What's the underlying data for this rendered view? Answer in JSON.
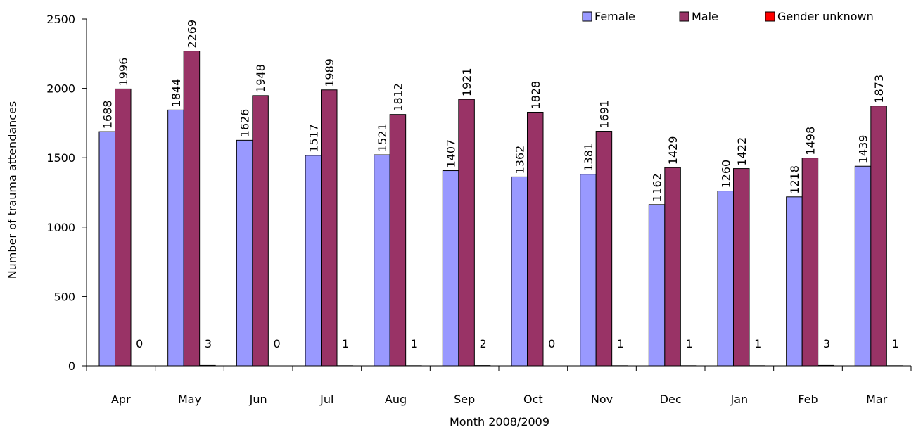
{
  "chart_data": {
    "type": "bar",
    "categories": [
      "Apr",
      "May",
      "Jun",
      "Jul",
      "Aug",
      "Sep",
      "Oct",
      "Nov",
      "Dec",
      "Jan",
      "Feb",
      "Mar"
    ],
    "series": [
      {
        "name": "Female",
        "color": "#9999ff",
        "values": [
          1688,
          1844,
          1626,
          1517,
          1521,
          1407,
          1362,
          1381,
          1162,
          1260,
          1218,
          1439
        ]
      },
      {
        "name": "Male",
        "color": "#993366",
        "values": [
          1996,
          2269,
          1948,
          1989,
          1812,
          1921,
          1828,
          1691,
          1429,
          1422,
          1498,
          1873
        ]
      },
      {
        "name": "Gender unknown",
        "color": "#ff0000",
        "values": [
          0,
          3,
          0,
          1,
          1,
          2,
          0,
          1,
          1,
          1,
          3,
          1
        ]
      }
    ],
    "xlabel": "Month 2008/2009",
    "ylabel": "Number of trauma attendances",
    "ylim": [
      0,
      2500
    ],
    "yticks": [
      0,
      500,
      1000,
      1500,
      2000,
      2500
    ],
    "grid": false,
    "legend": "top-right",
    "data_labels": true
  }
}
